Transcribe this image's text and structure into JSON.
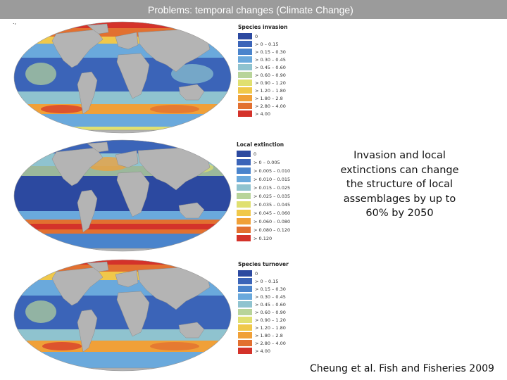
{
  "header": {
    "title": "Problems: temporal changes (Climate Change)"
  },
  "corner_mark": ".,",
  "panels": [
    {
      "legend_title": "Species invasion",
      "labels": [
        "0",
        "> 0 – 0.15",
        "> 0.15 – 0.30",
        "> 0.30 – 0.45",
        "> 0.45 – 0.60",
        "> 0.60 – 0.90",
        "> 0.90 – 1.20",
        "> 1.20 – 1.80",
        "> 1.80 – 2.8",
        "> 2.80 – 4.00",
        "> 4.00"
      ],
      "colors": [
        "#2c49a0",
        "#3b64b8",
        "#4a84cc",
        "#6aa9dc",
        "#8fc3cf",
        "#b8d49a",
        "#e0e070",
        "#f0c84a",
        "#f0a038",
        "#e27030",
        "#d4322a"
      ]
    },
    {
      "legend_title": "Local extinction",
      "labels": [
        "0",
        "> 0 – 0.005",
        "> 0.005 – 0.010",
        "> 0.010 – 0.015",
        "> 0.015 – 0.025",
        "> 0.025 – 0.035",
        "> 0.035 – 0.045",
        "> 0.045 – 0.060",
        "> 0.060 – 0.080",
        "> 0.080 – 0.120",
        "> 0.120"
      ],
      "colors": [
        "#2c49a0",
        "#3b64b8",
        "#4a84cc",
        "#6aa9dc",
        "#8fc3cf",
        "#b8d49a",
        "#e0e070",
        "#f0c84a",
        "#f0a038",
        "#e27030",
        "#d4322a"
      ]
    },
    {
      "legend_title": "Species turnover",
      "labels": [
        "0",
        "> 0 – 0.15",
        "> 0.15 – 0.30",
        "> 0.30 – 0.45",
        "> 0.45 – 0.60",
        "> 0.60 – 0.90",
        "> 0.90 – 1.20",
        "> 1.20 – 1.80",
        "> 1.80 – 2.8",
        "> 2.80 – 4.00",
        "> 4.00"
      ],
      "colors": [
        "#2c49a0",
        "#3b64b8",
        "#4a84cc",
        "#6aa9dc",
        "#8fc3cf",
        "#b8d49a",
        "#e0e070",
        "#f0c84a",
        "#f0a038",
        "#e27030",
        "#d4322a"
      ]
    }
  ],
  "note": "Invasion and local extinctions can change the structure of local assemblages by up to 60% by 2050",
  "citation": "Cheung et al. Fish and Fisheries 2009"
}
